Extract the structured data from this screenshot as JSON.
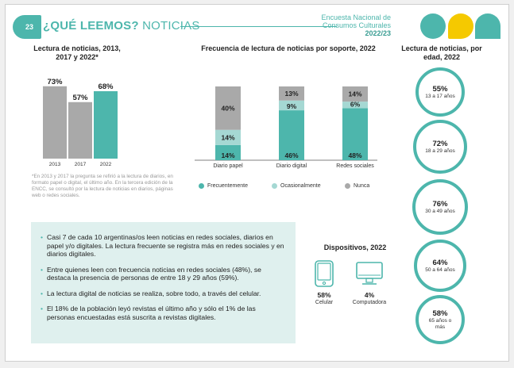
{
  "header": {
    "page_number": "23",
    "title_bold": "¿QUÉ LEEMOS?",
    "title_rest": "NOTICIAS",
    "survey_line1": "Encuesta Nacional de",
    "survey_line2": "Consumos Culturales",
    "survey_year": "2022/23"
  },
  "colors": {
    "teal": "#4db6ac",
    "light_teal": "#a5d8d3",
    "gray": "#a9a9a9",
    "yellow": "#f5c900"
  },
  "chart_data": [
    {
      "type": "bar",
      "title": "Lectura de noticias, 2013, 2017 y 2022*",
      "categories": [
        "2013",
        "2017",
        "2022"
      ],
      "values": [
        73,
        57,
        68
      ],
      "value_labels": [
        "73%",
        "57%",
        "68%"
      ],
      "colors": [
        "#a9a9a9",
        "#a9a9a9",
        "#4db6ac"
      ],
      "ylim": [
        0,
        100
      ],
      "note": "*En 2013 y 2017 la pregunta se refirió a la lectura de diarios, en formato papel o digital, el último año. En la tercera edición de la ENCC, se consultó por la lectura de noticias en diarios, páginas web o redes sociales."
    },
    {
      "type": "bar",
      "stacked": true,
      "title": "Frecuencia de lectura de noticias por soporte, 2022",
      "categories": [
        "Diario papel",
        "Diario digital",
        "Redes sociales"
      ],
      "series": [
        {
          "name": "Frecuentemente",
          "color": "#4db6ac",
          "values": [
            14,
            46,
            48
          ],
          "labels": [
            "14%",
            "46%",
            "48%"
          ]
        },
        {
          "name": "Ocasionalmente",
          "color": "#a5d8d3",
          "values": [
            14,
            9,
            6
          ],
          "labels": [
            "14%",
            "9%",
            "6%"
          ]
        },
        {
          "name": "Nunca",
          "color": "#a9a9a9",
          "values": [
            40,
            13,
            14
          ],
          "labels": [
            "40%",
            "13%",
            "14%"
          ]
        }
      ],
      "legend": "bottom"
    },
    {
      "type": "table",
      "title": "Lectura de noticias, por edad, 2022",
      "rows": [
        {
          "value": 55,
          "label": "55%",
          "age": "13 a 17 años"
        },
        {
          "value": 72,
          "label": "72%",
          "age": "18 a 29 años"
        },
        {
          "value": 76,
          "label": "76%",
          "age": "30 a 49 años"
        },
        {
          "value": 64,
          "label": "64%",
          "age": "50 a 64 años"
        },
        {
          "value": 58,
          "label": "58%",
          "age": "65 años o más"
        }
      ]
    }
  ],
  "bullets": [
    "Casi 7 de cada 10 argentinas/os leen noticias en redes sociales, diarios en papel y/o digitales. La lectura frecuente se registra más en redes sociales y en diarios digitales.",
    "Entre quienes leen con frecuencia noticias en redes sociales (48%), se destaca la presencia de personas de entre 18 y 29 años (59%).",
    "La lectura digital de noticias se realiza, sobre todo, a través del celular.",
    "El 18% de la población leyó revistas el último año y sólo el 1% de las personas encuestadas está suscrita a revistas digitales."
  ],
  "devices": {
    "title": "Dispositivos, 2022",
    "items": [
      {
        "label": "Celular",
        "value": "58%",
        "icon": "phone-icon"
      },
      {
        "label": "Computadora",
        "value": "4%",
        "icon": "computer-icon"
      }
    ]
  }
}
